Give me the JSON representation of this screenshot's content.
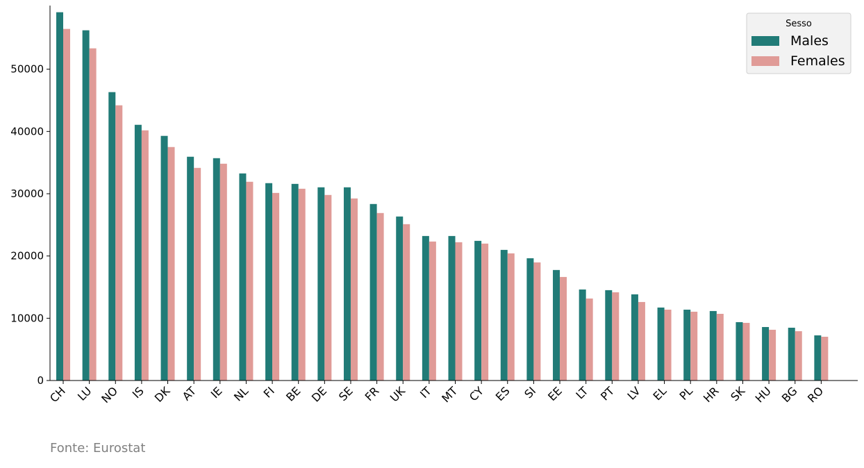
{
  "chart_data": {
    "type": "bar",
    "categories": [
      "CH",
      "LU",
      "NO",
      "IS",
      "DK",
      "AT",
      "IE",
      "NL",
      "FI",
      "BE",
      "DE",
      "SE",
      "FR",
      "UK",
      "IT",
      "MT",
      "CY",
      "ES",
      "SI",
      "EE",
      "LT",
      "PT",
      "LV",
      "EL",
      "PL",
      "HR",
      "SK",
      "HU",
      "BG",
      "RO"
    ],
    "series": [
      {
        "name": "Males",
        "color": "#217b77",
        "values": [
          59150,
          56250,
          46320,
          41070,
          39290,
          35940,
          35710,
          33260,
          31700,
          31580,
          31030,
          31030,
          28350,
          26340,
          23210,
          23210,
          22430,
          20980,
          19640,
          17750,
          14620,
          14510,
          13840,
          11720,
          11380,
          11160,
          9375,
          8590,
          8480,
          7250
        ]
      },
      {
        "name": "Females",
        "color": "#e09b97",
        "values": [
          56470,
          53350,
          44200,
          40180,
          37500,
          34150,
          34820,
          31920,
          30130,
          30800,
          29800,
          29240,
          26900,
          25110,
          22320,
          22210,
          21990,
          20420,
          18970,
          16630,
          13170,
          14170,
          12610,
          11380,
          11050,
          10710,
          9260,
          8150,
          7920,
          7030
        ]
      }
    ],
    "ylim": [
      0,
      60000
    ],
    "yticks": [
      0,
      10000,
      20000,
      30000,
      40000,
      50000
    ],
    "legend_title": "Sesso",
    "legend_position": "upper right",
    "source": "Fonte: Eurostat"
  }
}
